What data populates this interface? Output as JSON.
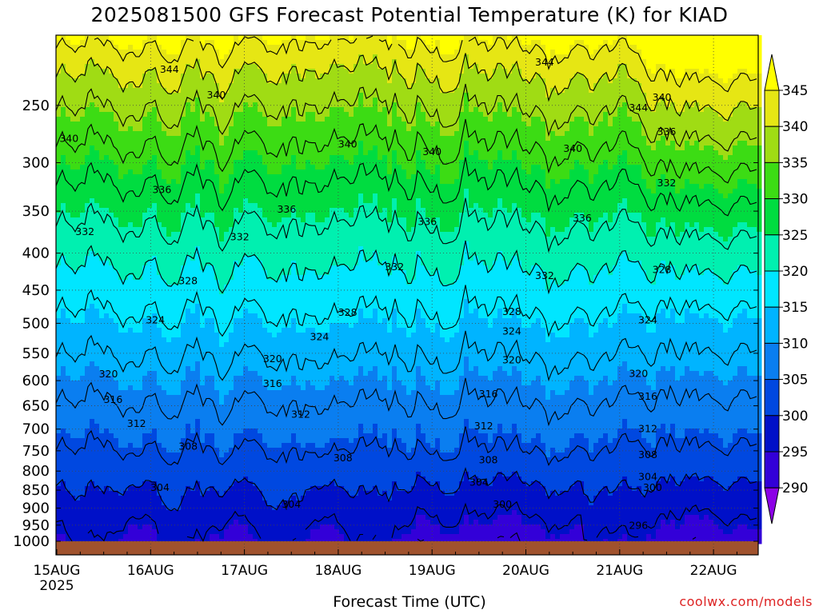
{
  "chart_data": {
    "type": "heatmap",
    "title": "2025081500 GFS Forecast Potential Temperature (K) for KIAD",
    "xlabel": "Forecast Time (UTC)",
    "ylabel": "",
    "x_ticks": [
      "15AUG",
      "16AUG",
      "17AUG",
      "18AUG",
      "19AUG",
      "20AUG",
      "21AUG",
      "22AUG"
    ],
    "x_year": "2025",
    "y_ticks": [
      250,
      300,
      350,
      400,
      450,
      500,
      550,
      600,
      650,
      700,
      750,
      800,
      850,
      900,
      950,
      1000
    ],
    "y_scale": "log-pressure (inverted)",
    "ylim": [
      1015,
      200
    ],
    "xlim_days": [
      0,
      7.5
    ],
    "colorbar": {
      "levels": [
        290,
        295,
        300,
        305,
        310,
        315,
        320,
        325,
        330,
        335,
        340,
        345
      ],
      "colors": [
        "#8c00e6",
        "#3300d8",
        "#0010c8",
        "#0048e0",
        "#0a7ef0",
        "#00b4ff",
        "#00e6ff",
        "#00f0b0",
        "#00dc40",
        "#3cdc14",
        "#a0dc14",
        "#e6e614",
        "#ffff00"
      ]
    },
    "contour_interval": 4,
    "contour_labels": [
      {
        "value": 344,
        "x": 1.2,
        "p": 223
      },
      {
        "value": 344,
        "x": 5.2,
        "p": 218
      },
      {
        "value": 344,
        "x": 6.2,
        "p": 252
      },
      {
        "value": 340,
        "x": 1.7,
        "p": 242
      },
      {
        "value": 340,
        "x": 0.13,
        "p": 278
      },
      {
        "value": 340,
        "x": 3.1,
        "p": 283
      },
      {
        "value": 340,
        "x": 4.0,
        "p": 290
      },
      {
        "value": 340,
        "x": 5.5,
        "p": 287
      },
      {
        "value": 340,
        "x": 6.45,
        "p": 244
      },
      {
        "value": 336,
        "x": 1.12,
        "p": 327
      },
      {
        "value": 336,
        "x": 2.45,
        "p": 348
      },
      {
        "value": 336,
        "x": 3.95,
        "p": 362
      },
      {
        "value": 336,
        "x": 5.6,
        "p": 358
      },
      {
        "value": 336,
        "x": 6.5,
        "p": 272
      },
      {
        "value": 332,
        "x": 0.3,
        "p": 374
      },
      {
        "value": 332,
        "x": 1.95,
        "p": 380
      },
      {
        "value": 332,
        "x": 3.6,
        "p": 418
      },
      {
        "value": 332,
        "x": 5.2,
        "p": 430
      },
      {
        "value": 332,
        "x": 6.5,
        "p": 320
      },
      {
        "value": 328,
        "x": 1.4,
        "p": 437
      },
      {
        "value": 328,
        "x": 3.1,
        "p": 483
      },
      {
        "value": 328,
        "x": 4.85,
        "p": 482
      },
      {
        "value": 328,
        "x": 6.45,
        "p": 422
      },
      {
        "value": 324,
        "x": 1.05,
        "p": 495
      },
      {
        "value": 324,
        "x": 2.8,
        "p": 522
      },
      {
        "value": 324,
        "x": 4.85,
        "p": 513
      },
      {
        "value": 324,
        "x": 6.3,
        "p": 495
      },
      {
        "value": 320,
        "x": 0.55,
        "p": 588
      },
      {
        "value": 320,
        "x": 2.3,
        "p": 560
      },
      {
        "value": 320,
        "x": 4.85,
        "p": 562
      },
      {
        "value": 320,
        "x": 6.2,
        "p": 587
      },
      {
        "value": 316,
        "x": 0.6,
        "p": 638
      },
      {
        "value": 316,
        "x": 2.3,
        "p": 606
      },
      {
        "value": 316,
        "x": 4.6,
        "p": 626
      },
      {
        "value": 316,
        "x": 6.3,
        "p": 631
      },
      {
        "value": 312,
        "x": 0.85,
        "p": 688
      },
      {
        "value": 312,
        "x": 2.6,
        "p": 668
      },
      {
        "value": 312,
        "x": 4.55,
        "p": 693
      },
      {
        "value": 312,
        "x": 6.3,
        "p": 700
      },
      {
        "value": 308,
        "x": 1.4,
        "p": 740
      },
      {
        "value": 308,
        "x": 3.05,
        "p": 768
      },
      {
        "value": 308,
        "x": 4.6,
        "p": 773
      },
      {
        "value": 308,
        "x": 6.3,
        "p": 760
      },
      {
        "value": 304,
        "x": 1.1,
        "p": 843
      },
      {
        "value": 304,
        "x": 2.5,
        "p": 890
      },
      {
        "value": 304,
        "x": 4.5,
        "p": 830
      },
      {
        "value": 304,
        "x": 6.3,
        "p": 815
      },
      {
        "value": 300,
        "x": 4.75,
        "p": 890
      },
      {
        "value": 300,
        "x": 6.35,
        "p": 843
      },
      {
        "value": 296,
        "x": 6.2,
        "p": 952
      }
    ]
  },
  "credit": "coolwx.com/models"
}
